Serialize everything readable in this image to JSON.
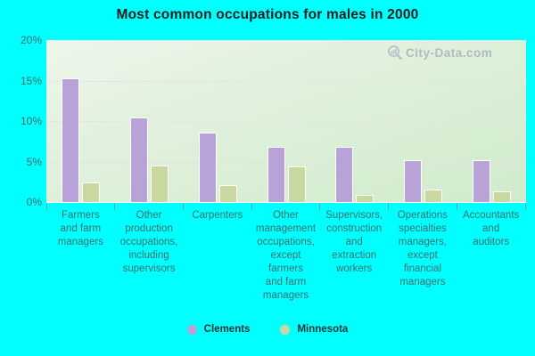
{
  "title": "Most common occupations for males in 2000",
  "watermark": {
    "text": "City-Data.com",
    "icon": "magnifier-bar-chart"
  },
  "colors": {
    "background": "#00ffff",
    "clements": "#b9a2d8",
    "minnesota": "#c9d8a1",
    "axis_text": "#3c6e6e",
    "gridline": "#e9deeb",
    "title_text": "#1c1c1c",
    "watermark_text": "#a6b3bd"
  },
  "chart_data": {
    "type": "bar",
    "title": "Most common occupations for males in 2000",
    "categories": [
      "Farmers\nand farm\nmanagers",
      "Other\nproduction\noccupations,\nincluding\nsupervisors",
      "Carpenters",
      "Other\nmanagement\noccupations,\nexcept\nfarmers\nand farm\nmanagers",
      "Supervisors,\nconstruction\nand\nextraction\nworkers",
      "Operations\nspecialties\nmanagers,\nexcept\nfinancial\nmanagers",
      "Accountants\nand\nauditors"
    ],
    "series": [
      {
        "name": "Clements",
        "color": "#b9a2d8",
        "values": [
          15.3,
          10.4,
          8.6,
          6.8,
          6.8,
          5.2,
          5.2
        ]
      },
      {
        "name": "Minnesota",
        "color": "#c9d8a1",
        "values": [
          2.4,
          4.5,
          2.1,
          4.4,
          0.9,
          1.5,
          1.3
        ]
      }
    ],
    "xlabel": "",
    "ylabel": "",
    "ylim": [
      0,
      20
    ],
    "ytick_labels": [
      "0%",
      "5%",
      "10%",
      "15%",
      "20%"
    ],
    "ytick_values": [
      0,
      5,
      10,
      15,
      20
    ],
    "grid": true,
    "legend_position": "bottom"
  },
  "legend": {
    "items": [
      {
        "label": "Clements",
        "color": "#b9a2d8"
      },
      {
        "label": "Minnesota",
        "color": "#c9d8a1"
      }
    ]
  }
}
